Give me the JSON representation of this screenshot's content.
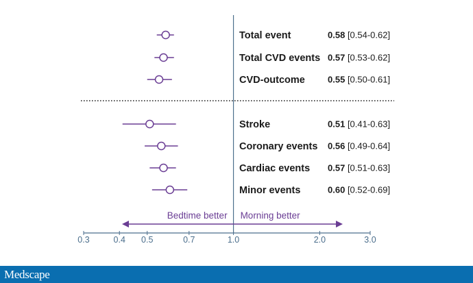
{
  "chart_data": {
    "type": "forest",
    "x_scale": "log",
    "xlim": [
      0.3,
      3.0
    ],
    "reference_value": 1.0,
    "ticks": [
      {
        "value": 0.3,
        "label": "0.3"
      },
      {
        "value": 0.4,
        "label": "0.4"
      },
      {
        "value": 0.5,
        "label": "0.5"
      },
      {
        "value": 0.7,
        "label": "0.7"
      },
      {
        "value": 1.0,
        "label": "1.0"
      },
      {
        "value": 2.0,
        "label": "2.0"
      },
      {
        "value": 3.0,
        "label": "3.0"
      }
    ],
    "direction_left": "Bedtime better",
    "direction_right": "Morning better",
    "groups": [
      {
        "rows": [
          {
            "label": "Total event",
            "estimate": 0.58,
            "lower": 0.54,
            "upper": 0.62,
            "value_text": "0.58",
            "ci_text": "[0.54-0.62]"
          },
          {
            "label": "Total CVD events",
            "estimate": 0.57,
            "lower": 0.53,
            "upper": 0.62,
            "value_text": "0.57",
            "ci_text": "[0.53-0.62]"
          },
          {
            "label": "CVD-outcome",
            "estimate": 0.55,
            "lower": 0.5,
            "upper": 0.61,
            "value_text": "0.55",
            "ci_text": "[0.50-0.61]"
          }
        ]
      },
      {
        "rows": [
          {
            "label": "Stroke",
            "estimate": 0.51,
            "lower": 0.41,
            "upper": 0.63,
            "value_text": "0.51",
            "ci_text": "[0.41-0.63]"
          },
          {
            "label": "Coronary events",
            "estimate": 0.56,
            "lower": 0.49,
            "upper": 0.64,
            "value_text": "0.56",
            "ci_text": "[0.49-0.64]"
          },
          {
            "label": "Cardiac events",
            "estimate": 0.57,
            "lower": 0.51,
            "upper": 0.63,
            "value_text": "0.57",
            "ci_text": "[0.51-0.63]"
          },
          {
            "label": "Minor events",
            "estimate": 0.6,
            "lower": 0.52,
            "upper": 0.69,
            "value_text": "0.60",
            "ci_text": "[0.52-0.69]"
          }
        ]
      }
    ],
    "colors": {
      "marker": "#6a3d94",
      "axis": "#4b6e8c",
      "reference_line": "#4b6e8c",
      "text": "#1a1a1a"
    }
  },
  "footer": {
    "logo_text": "Medscape",
    "background": "#0a6eb0"
  }
}
